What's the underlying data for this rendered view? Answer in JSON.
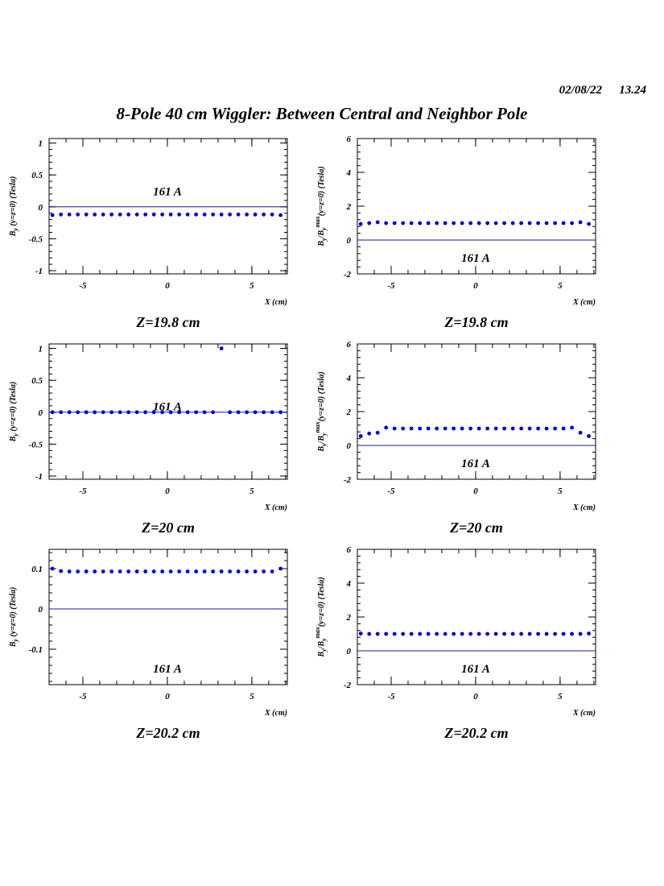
{
  "header": {
    "date": "02/08/22",
    "time": "13.24",
    "title": "8-Pole 40 cm Wiggler: Between Central and Neighbor Pole"
  },
  "chart_data": [
    {
      "type": "scatter",
      "title": "Z=19.8 cm",
      "xlabel": "X (cm)",
      "ylabel": [
        {
          "text": "B"
        },
        {
          "text": "y",
          "sub": true
        },
        {
          "text": " (y=z=0) (Tesla)"
        }
      ],
      "annotation": "161 A",
      "color": "#0000cc",
      "hline": 0,
      "xlim": [
        -7,
        7.1
      ],
      "xticks": [
        -5,
        0,
        5
      ],
      "ylim": [
        -1.05,
        1.07
      ],
      "yticks": [
        -1,
        -0.5,
        0,
        0.5,
        1
      ],
      "x": [
        -6.8,
        -6.3,
        -5.8,
        -5.3,
        -4.8,
        -4.3,
        -3.8,
        -3.3,
        -2.8,
        -2.3,
        -1.8,
        -1.3,
        -0.8,
        -0.3,
        0.2,
        0.7,
        1.2,
        1.7,
        2.2,
        2.7,
        3.2,
        3.7,
        4.2,
        4.7,
        5.2,
        5.7,
        6.2,
        6.7
      ],
      "values": [
        -0.13,
        -0.12,
        -0.12,
        -0.12,
        -0.12,
        -0.12,
        -0.12,
        -0.12,
        -0.12,
        -0.12,
        -0.12,
        -0.12,
        -0.12,
        -0.12,
        -0.12,
        -0.12,
        -0.12,
        -0.12,
        -0.12,
        -0.12,
        -0.12,
        -0.12,
        -0.12,
        -0.12,
        -0.12,
        -0.12,
        -0.12,
        -0.13
      ]
    },
    {
      "type": "scatter",
      "title": "Z=19.8 cm",
      "xlabel": "X (cm)",
      "ylabel": [
        {
          "text": "B"
        },
        {
          "text": "y",
          "sub": true
        },
        {
          "text": "/B"
        },
        {
          "text": "y",
          "sub": true
        },
        {
          "text": "max",
          "sup": true
        },
        {
          "text": "(y=z=0) (Tesla)"
        }
      ],
      "annotation": "161 A",
      "color": "#0000cc",
      "hline": 0,
      "xlim": [
        -7,
        7.1
      ],
      "xticks": [
        -5,
        0,
        5
      ],
      "ylim": [
        -2,
        6
      ],
      "yticks": [
        -2,
        0,
        2,
        4,
        6
      ],
      "x": [
        -6.8,
        -6.3,
        -5.8,
        -5.3,
        -4.8,
        -4.3,
        -3.8,
        -3.3,
        -2.8,
        -2.3,
        -1.8,
        -1.3,
        -0.8,
        -0.3,
        0.2,
        0.7,
        1.2,
        1.7,
        2.2,
        2.7,
        3.2,
        3.7,
        4.2,
        4.7,
        5.2,
        5.7,
        6.2,
        6.7
      ],
      "values": [
        0.95,
        1.0,
        1.05,
        1.0,
        1.0,
        1.0,
        1.0,
        1.0,
        1.0,
        1.0,
        1.0,
        1.0,
        1.0,
        1.0,
        1.0,
        1.0,
        1.0,
        1.0,
        1.0,
        1.0,
        1.0,
        1.0,
        1.0,
        1.0,
        1.0,
        1.0,
        1.05,
        0.95
      ]
    },
    {
      "type": "scatter",
      "title": "Z=20 cm",
      "xlabel": "X (cm)",
      "ylabel": [
        {
          "text": "B"
        },
        {
          "text": "y",
          "sub": true
        },
        {
          "text": " (y=z=0) (Tesla)"
        }
      ],
      "annotation": "161 A",
      "color": "#0000cc",
      "hline": 0,
      "xlim": [
        -7,
        7.1
      ],
      "xticks": [
        -5,
        0,
        5
      ],
      "ylim": [
        -1.05,
        1.07
      ],
      "yticks": [
        -1,
        -0.5,
        0,
        0.5,
        1
      ],
      "x": [
        -6.8,
        -6.3,
        -5.8,
        -5.3,
        -4.8,
        -4.3,
        -3.8,
        -3.3,
        -2.8,
        -2.3,
        -1.8,
        -1.3,
        -0.8,
        -0.3,
        0.2,
        0.7,
        1.2,
        1.7,
        2.2,
        2.7,
        3.2,
        3.7,
        4.2,
        4.7,
        5.2,
        5.7,
        6.2,
        6.7
      ],
      "values": [
        0,
        0,
        0,
        0,
        0,
        0,
        0,
        0,
        0,
        0,
        0,
        0,
        0,
        0,
        0,
        0,
        0,
        0,
        0,
        0,
        1.0,
        0,
        0,
        0,
        0,
        0,
        0,
        0
      ]
    },
    {
      "type": "scatter",
      "title": "Z=20 cm",
      "xlabel": "X (cm)",
      "ylabel": [
        {
          "text": "B"
        },
        {
          "text": "y",
          "sub": true
        },
        {
          "text": "/B"
        },
        {
          "text": "y",
          "sub": true
        },
        {
          "text": "max",
          "sup": true
        },
        {
          "text": "(y=z=0) (Tesla)"
        }
      ],
      "annotation": "161 A",
      "color": "#0000cc",
      "hline": 0,
      "xlim": [
        -7,
        7.1
      ],
      "xticks": [
        -5,
        0,
        5
      ],
      "ylim": [
        -2,
        6
      ],
      "yticks": [
        -2,
        0,
        2,
        4,
        6
      ],
      "x": [
        -6.8,
        -6.3,
        -5.8,
        -5.3,
        -4.8,
        -4.3,
        -3.8,
        -3.3,
        -2.8,
        -2.3,
        -1.8,
        -1.3,
        -0.8,
        -0.3,
        0.2,
        0.7,
        1.2,
        1.7,
        2.2,
        2.7,
        3.2,
        3.7,
        4.2,
        4.7,
        5.2,
        5.7,
        6.2,
        6.7
      ],
      "values": [
        0.55,
        0.7,
        0.75,
        1.05,
        1.0,
        1.0,
        1.0,
        1.0,
        1.0,
        1.0,
        1.0,
        1.0,
        1.0,
        1.0,
        1.0,
        1.0,
        1.0,
        1.0,
        1.0,
        1.0,
        1.0,
        1.0,
        1.0,
        1.0,
        1.0,
        1.05,
        0.75,
        0.55
      ]
    },
    {
      "type": "scatter",
      "title": "Z=20.2 cm",
      "xlabel": "X (cm)",
      "ylabel": [
        {
          "text": "B"
        },
        {
          "text": "y",
          "sub": true
        },
        {
          "text": " (y=z=0) (Tesla)"
        }
      ],
      "annotation": "161 A",
      "color": "#0000cc",
      "hline": 0,
      "xlim": [
        -7,
        7.1
      ],
      "xticks": [
        -5,
        0,
        5
      ],
      "ylim": [
        -0.188,
        0.148
      ],
      "yticks": [
        -0.1,
        0,
        0.1
      ],
      "x": [
        -6.8,
        -6.3,
        -5.8,
        -5.3,
        -4.8,
        -4.3,
        -3.8,
        -3.3,
        -2.8,
        -2.3,
        -1.8,
        -1.3,
        -0.8,
        -0.3,
        0.2,
        0.7,
        1.2,
        1.7,
        2.2,
        2.7,
        3.2,
        3.7,
        4.2,
        4.7,
        5.2,
        5.7,
        6.2,
        6.7
      ],
      "values": [
        0.1,
        0.094,
        0.093,
        0.093,
        0.093,
        0.093,
        0.093,
        0.093,
        0.093,
        0.093,
        0.093,
        0.093,
        0.093,
        0.093,
        0.093,
        0.093,
        0.093,
        0.093,
        0.093,
        0.093,
        0.093,
        0.093,
        0.093,
        0.093,
        0.093,
        0.093,
        0.093,
        0.1
      ]
    },
    {
      "type": "scatter",
      "title": "Z=20.2 cm",
      "xlabel": "X (cm)",
      "ylabel": [
        {
          "text": "B"
        },
        {
          "text": "y",
          "sub": true
        },
        {
          "text": "/B"
        },
        {
          "text": "y",
          "sub": true
        },
        {
          "text": "max",
          "sup": true
        },
        {
          "text": "(y=z=0) (Tesla)"
        }
      ],
      "annotation": "161 A",
      "color": "#0000cc",
      "hline": 0,
      "xlim": [
        -7,
        7.1
      ],
      "xticks": [
        -5,
        0,
        5
      ],
      "ylim": [
        -2,
        6
      ],
      "yticks": [
        -2,
        0,
        2,
        4,
        6
      ],
      "x": [
        -6.8,
        -6.3,
        -5.8,
        -5.3,
        -4.8,
        -4.3,
        -3.8,
        -3.3,
        -2.8,
        -2.3,
        -1.8,
        -1.3,
        -0.8,
        -0.3,
        0.2,
        0.7,
        1.2,
        1.7,
        2.2,
        2.7,
        3.2,
        3.7,
        4.2,
        4.7,
        5.2,
        5.7,
        6.2,
        6.7
      ],
      "values": [
        1.02,
        1.0,
        1.0,
        1.0,
        1.0,
        1.0,
        1.0,
        1.0,
        1.0,
        1.0,
        1.0,
        1.0,
        1.0,
        1.0,
        1.0,
        1.0,
        1.0,
        1.0,
        1.0,
        1.0,
        1.0,
        1.0,
        1.0,
        1.0,
        1.0,
        1.0,
        1.0,
        1.02
      ]
    }
  ]
}
